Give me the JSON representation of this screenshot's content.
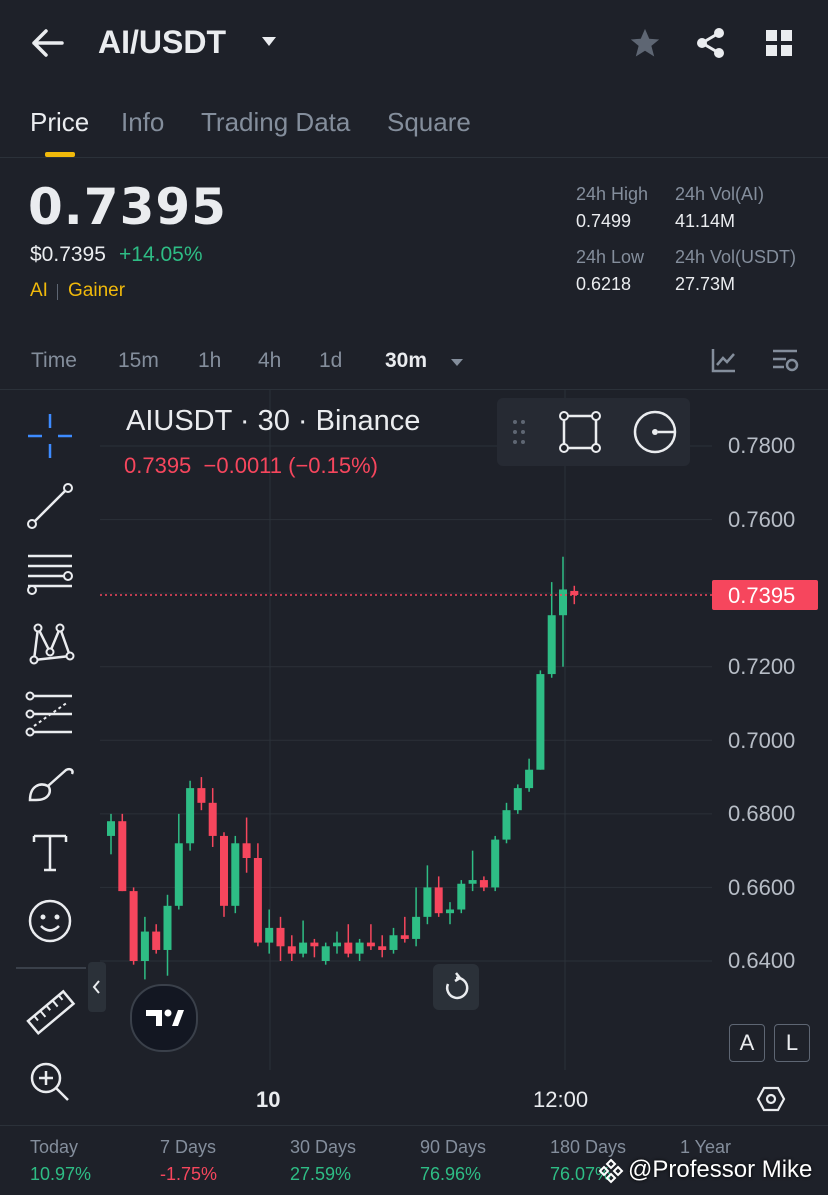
{
  "header": {
    "pair": "AI/USDT",
    "tabs": [
      "Price",
      "Info",
      "Trading Data",
      "Square"
    ]
  },
  "price": {
    "last": "0.7395",
    "usd": "$0.7395",
    "change": "+14.05%",
    "tag1": "AI",
    "tag2": "Gainer",
    "high_label": "24h High",
    "high": "0.7499",
    "low_label": "24h Low",
    "low": "0.6218",
    "vol_ai_label": "24h Vol(AI)",
    "vol_ai": "41.14M",
    "vol_usdt_label": "24h Vol(USDT)",
    "vol_usdt": "27.73M"
  },
  "timeframes": [
    "Time",
    "15m",
    "1h",
    "4h",
    "1d",
    "30m"
  ],
  "chart_header": {
    "symbol": "AIUSDT · 30 · Binance",
    "ohlc": "0.7395  −0.0011 (−0.15%)"
  },
  "chart_data": {
    "type": "candlestick",
    "ylim": [
      0.62,
      0.79
    ],
    "y_ticks": [
      "0.7800",
      "0.7600",
      "0.7200",
      "0.7000",
      "0.6800",
      "0.6600",
      "0.6400"
    ],
    "x_ticks": [
      "10",
      "12:00"
    ],
    "last_price_label": "0.7395",
    "colors": {
      "up": "#2ebd85",
      "down": "#f6465d"
    },
    "candles": [
      {
        "o": 0.674,
        "h": 0.68,
        "l": 0.669,
        "c": 0.678
      },
      {
        "o": 0.678,
        "h": 0.68,
        "l": 0.659,
        "c": 0.659
      },
      {
        "o": 0.659,
        "h": 0.66,
        "l": 0.639,
        "c": 0.64
      },
      {
        "o": 0.64,
        "h": 0.652,
        "l": 0.635,
        "c": 0.648
      },
      {
        "o": 0.648,
        "h": 0.65,
        "l": 0.642,
        "c": 0.643
      },
      {
        "o": 0.643,
        "h": 0.658,
        "l": 0.636,
        "c": 0.655
      },
      {
        "o": 0.655,
        "h": 0.68,
        "l": 0.654,
        "c": 0.672
      },
      {
        "o": 0.672,
        "h": 0.689,
        "l": 0.67,
        "c": 0.687
      },
      {
        "o": 0.687,
        "h": 0.69,
        "l": 0.681,
        "c": 0.683
      },
      {
        "o": 0.683,
        "h": 0.687,
        "l": 0.671,
        "c": 0.674
      },
      {
        "o": 0.674,
        "h": 0.675,
        "l": 0.652,
        "c": 0.655
      },
      {
        "o": 0.655,
        "h": 0.674,
        "l": 0.653,
        "c": 0.672
      },
      {
        "o": 0.672,
        "h": 0.679,
        "l": 0.664,
        "c": 0.668
      },
      {
        "o": 0.668,
        "h": 0.672,
        "l": 0.644,
        "c": 0.645
      },
      {
        "o": 0.645,
        "h": 0.654,
        "l": 0.642,
        "c": 0.649
      },
      {
        "o": 0.649,
        "h": 0.652,
        "l": 0.64,
        "c": 0.644
      },
      {
        "o": 0.644,
        "h": 0.647,
        "l": 0.64,
        "c": 0.642
      },
      {
        "o": 0.642,
        "h": 0.651,
        "l": 0.641,
        "c": 0.645
      },
      {
        "o": 0.645,
        "h": 0.646,
        "l": 0.641,
        "c": 0.644
      },
      {
        "o": 0.64,
        "h": 0.645,
        "l": 0.639,
        "c": 0.644
      },
      {
        "o": 0.644,
        "h": 0.648,
        "l": 0.642,
        "c": 0.645
      },
      {
        "o": 0.645,
        "h": 0.65,
        "l": 0.641,
        "c": 0.642
      },
      {
        "o": 0.642,
        "h": 0.646,
        "l": 0.64,
        "c": 0.645
      },
      {
        "o": 0.645,
        "h": 0.65,
        "l": 0.643,
        "c": 0.644
      },
      {
        "o": 0.644,
        "h": 0.647,
        "l": 0.641,
        "c": 0.643
      },
      {
        "o": 0.643,
        "h": 0.649,
        "l": 0.642,
        "c": 0.647
      },
      {
        "o": 0.647,
        "h": 0.652,
        "l": 0.645,
        "c": 0.646
      },
      {
        "o": 0.646,
        "h": 0.66,
        "l": 0.644,
        "c": 0.652
      },
      {
        "o": 0.652,
        "h": 0.666,
        "l": 0.65,
        "c": 0.66
      },
      {
        "o": 0.66,
        "h": 0.663,
        "l": 0.652,
        "c": 0.653
      },
      {
        "o": 0.653,
        "h": 0.656,
        "l": 0.65,
        "c": 0.654
      },
      {
        "o": 0.654,
        "h": 0.662,
        "l": 0.653,
        "c": 0.661
      },
      {
        "o": 0.661,
        "h": 0.67,
        "l": 0.659,
        "c": 0.662
      },
      {
        "o": 0.662,
        "h": 0.663,
        "l": 0.659,
        "c": 0.66
      },
      {
        "o": 0.66,
        "h": 0.674,
        "l": 0.659,
        "c": 0.673
      },
      {
        "o": 0.673,
        "h": 0.683,
        "l": 0.672,
        "c": 0.681
      },
      {
        "o": 0.681,
        "h": 0.688,
        "l": 0.68,
        "c": 0.687
      },
      {
        "o": 0.687,
        "h": 0.695,
        "l": 0.686,
        "c": 0.692
      },
      {
        "o": 0.692,
        "h": 0.719,
        "l": 0.692,
        "c": 0.718
      },
      {
        "o": 0.718,
        "h": 0.743,
        "l": 0.717,
        "c": 0.734
      },
      {
        "o": 0.734,
        "h": 0.7499,
        "l": 0.72,
        "c": 0.741
      },
      {
        "o": 0.7406,
        "h": 0.742,
        "l": 0.737,
        "c": 0.7395
      }
    ]
  },
  "performance": {
    "labels": [
      "Today",
      "7 Days",
      "30 Days",
      "90 Days",
      "180 Days",
      "1 Year"
    ],
    "values": [
      "10.97%",
      "-1.75%",
      "27.59%",
      "76.96%",
      "76.07%",
      ""
    ]
  },
  "watermark": "@Professor Mike",
  "toggles": {
    "auto": "A",
    "log": "L"
  }
}
